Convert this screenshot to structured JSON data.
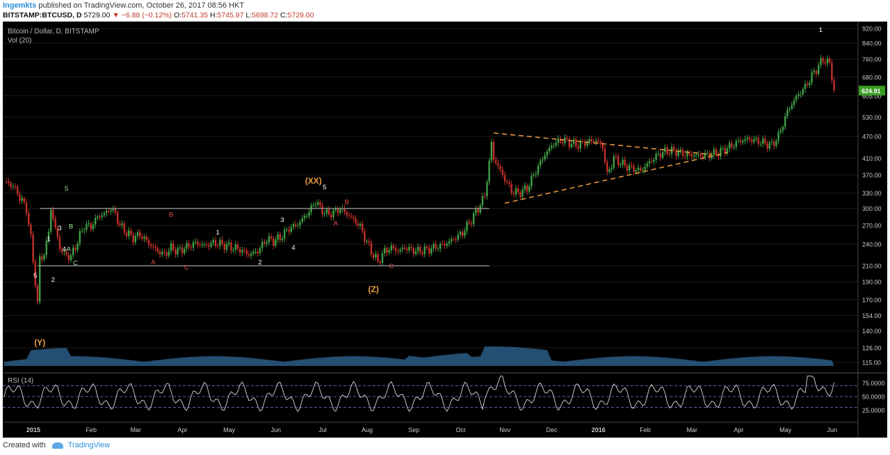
{
  "header": {
    "publisher": "Ingemkts",
    "published_text": "published on TradingView.com, October 26, 2017 08:56 HKT",
    "symbol": "BITSTAMP:BTCUSD, D",
    "last": "5729.00",
    "change": "−6.88 (−0.12%)",
    "open_label": "O:",
    "open": "5741.35",
    "high_label": "H:",
    "high": "5745.97",
    "low_label": "L:",
    "low": "5698.72",
    "close_label": "C:",
    "close": "5729.00"
  },
  "footer": {
    "created_with": "Created with",
    "brand": "TradingView"
  },
  "colors": {
    "background": "#000000",
    "grid": "#1c1c1c",
    "up": "#3fa046",
    "down": "#c4302b",
    "channel": "#8a8a8a",
    "triangle": "#f0a040",
    "wave_orange": "#f0a040",
    "wave_red": "#e8504a",
    "wave_green": "#9be39b",
    "wave_white": "#ffffff",
    "volume": "#2a5c86",
    "rsi": "#d8d8d8",
    "rsi_band": "#5566aa",
    "price_tag": "#3a9d23"
  },
  "chart_data": {
    "type": "candlestick",
    "title": "Bitcoin / Dollar, D, BITSTAMP",
    "volume_label": "Vol (20)",
    "rsi_label": "RSI (14)",
    "last_price_tag": "624.91",
    "price_scale": "log",
    "y_ticks": [
      "920.00",
      "840.00",
      "760.00",
      "680.00",
      "605.00",
      "530.00",
      "470.00",
      "410.00",
      "370.00",
      "330.00",
      "300.00",
      "270.00",
      "240.00",
      "210.00",
      "190.00",
      "170.00",
      "154.00",
      "140.00",
      "126.00",
      "115.00"
    ],
    "rsi_ticks": [
      "75.0000",
      "50.0000",
      "25.0000"
    ],
    "x_labels": [
      "2015",
      "Feb",
      "Mar",
      "Apr",
      "May",
      "Jun",
      "Jul",
      "Aug",
      "Sep",
      "Oct",
      "Nov",
      "Dec",
      "2016",
      "Feb",
      "Mar",
      "Apr",
      "May",
      "Jun"
    ],
    "price_path": [
      [
        0,
        355
      ],
      [
        4,
        345
      ],
      [
        7,
        322
      ],
      [
        10,
        300
      ],
      [
        12,
        248
      ],
      [
        14,
        190
      ],
      [
        15,
        165
      ],
      [
        16,
        220
      ],
      [
        18,
        225
      ],
      [
        20,
        260
      ],
      [
        21,
        300
      ],
      [
        23,
        265
      ],
      [
        25,
        235
      ],
      [
        27,
        225
      ],
      [
        30,
        222
      ],
      [
        33,
        245
      ],
      [
        36,
        270
      ],
      [
        39,
        268
      ],
      [
        42,
        285
      ],
      [
        45,
        290
      ],
      [
        48,
        300
      ],
      [
        50,
        290
      ],
      [
        52,
        270
      ],
      [
        55,
        258
      ],
      [
        58,
        250
      ],
      [
        61,
        255
      ],
      [
        64,
        245
      ],
      [
        66,
        238
      ],
      [
        69,
        230
      ],
      [
        72,
        225
      ],
      [
        75,
        235
      ],
      [
        78,
        230
      ],
      [
        82,
        236
      ],
      [
        86,
        242
      ],
      [
        90,
        238
      ],
      [
        94,
        242
      ],
      [
        98,
        240
      ],
      [
        102,
        236
      ],
      [
        106,
        232
      ],
      [
        110,
        225
      ],
      [
        114,
        230
      ],
      [
        118,
        248
      ],
      [
        121,
        245
      ],
      [
        124,
        250
      ],
      [
        128,
        265
      ],
      [
        132,
        272
      ],
      [
        135,
        285
      ],
      [
        138,
        300
      ],
      [
        140,
        315
      ],
      [
        142,
        300
      ],
      [
        145,
        290
      ],
      [
        148,
        292
      ],
      [
        151,
        300
      ],
      [
        154,
        290
      ],
      [
        157,
        280
      ],
      [
        160,
        268
      ],
      [
        162,
        250
      ],
      [
        165,
        230
      ],
      [
        168,
        215
      ],
      [
        171,
        230
      ],
      [
        174,
        235
      ],
      [
        177,
        230
      ],
      [
        180,
        235
      ],
      [
        183,
        232
      ],
      [
        186,
        230
      ],
      [
        190,
        232
      ],
      [
        194,
        236
      ],
      [
        198,
        240
      ],
      [
        202,
        248
      ],
      [
        206,
        258
      ],
      [
        210,
        280
      ],
      [
        213,
        300
      ],
      [
        216,
        325
      ],
      [
        218,
        400
      ],
      [
        219,
        450
      ],
      [
        220,
        410
      ],
      [
        222,
        390
      ],
      [
        225,
        360
      ],
      [
        228,
        335
      ],
      [
        231,
        330
      ],
      [
        235,
        340
      ],
      [
        239,
        380
      ],
      [
        243,
        420
      ],
      [
        247,
        450
      ],
      [
        251,
        460
      ],
      [
        255,
        450
      ],
      [
        258,
        445
      ],
      [
        262,
        455
      ],
      [
        266,
        458
      ],
      [
        269,
        440
      ],
      [
        271,
        370
      ],
      [
        274,
        410
      ],
      [
        278,
        395
      ],
      [
        282,
        385
      ],
      [
        286,
        380
      ],
      [
        290,
        400
      ],
      [
        294,
        420
      ],
      [
        298,
        430
      ],
      [
        302,
        428
      ],
      [
        306,
        420
      ],
      [
        310,
        418
      ],
      [
        314,
        418
      ],
      [
        318,
        420
      ],
      [
        322,
        428
      ],
      [
        326,
        440
      ],
      [
        330,
        455
      ],
      [
        334,
        462
      ],
      [
        338,
        458
      ],
      [
        342,
        450
      ],
      [
        345,
        445
      ],
      [
        348,
        470
      ],
      [
        352,
        550
      ],
      [
        356,
        600
      ],
      [
        360,
        640
      ],
      [
        364,
        700
      ],
      [
        368,
        760
      ],
      [
        371,
        740
      ],
      [
        373,
        625
      ]
    ],
    "trendlines": {
      "channel_top": 300,
      "channel_bottom": 210,
      "triangle_upper": [
        [
          220,
          480
        ],
        [
          318,
          420
        ]
      ],
      "triangle_lower": [
        [
          225,
          310
        ],
        [
          325,
          425
        ]
      ]
    },
    "wave_labels": [
      {
        "text": "(Y)",
        "d": 16,
        "p": 128,
        "color": "wave_orange",
        "size": "big"
      },
      {
        "text": "(XX)",
        "d": 139,
        "p": 350,
        "color": "wave_orange",
        "size": "big"
      },
      {
        "text": "(Z)",
        "d": 166,
        "p": 178,
        "color": "wave_orange",
        "size": "big"
      },
      {
        "text": "5",
        "d": 14,
        "p": 195,
        "color": "wave_white"
      },
      {
        "text": "1",
        "d": 20,
        "p": 245,
        "color": "wave_white"
      },
      {
        "text": "2",
        "d": 22,
        "p": 190,
        "color": "wave_white"
      },
      {
        "text": "3",
        "d": 25,
        "p": 262,
        "color": "wave_white"
      },
      {
        "text": "4",
        "d": 27,
        "p": 230,
        "color": "wave_white"
      },
      {
        "text": "5",
        "d": 28,
        "p": 335,
        "color": "wave_green"
      },
      {
        "text": "B",
        "d": 30,
        "p": 265,
        "color": "wave_green"
      },
      {
        "text": "A",
        "d": 29,
        "p": 230,
        "color": "wave_green"
      },
      {
        "text": "C",
        "d": 32,
        "p": 211,
        "color": "wave_green"
      },
      {
        "text": "B",
        "d": 75,
        "p": 285,
        "color": "wave_red"
      },
      {
        "text": "A",
        "d": 67,
        "p": 212,
        "color": "wave_red"
      },
      {
        "text": "C",
        "d": 82,
        "p": 205,
        "color": "wave_red"
      },
      {
        "text": "1",
        "d": 96,
        "p": 255,
        "color": "wave_white"
      },
      {
        "text": "2",
        "d": 115,
        "p": 212,
        "color": "wave_white"
      },
      {
        "text": "3",
        "d": 125,
        "p": 276,
        "color": "wave_white"
      },
      {
        "text": "4",
        "d": 130,
        "p": 232,
        "color": "wave_white"
      },
      {
        "text": "5",
        "d": 144,
        "p": 338,
        "color": "wave_white"
      },
      {
        "text": "B",
        "d": 154,
        "p": 308,
        "color": "wave_red"
      },
      {
        "text": "A",
        "d": 149,
        "p": 270,
        "color": "wave_red"
      },
      {
        "text": "C",
        "d": 174,
        "p": 207,
        "color": "wave_red"
      },
      {
        "text": "1",
        "d": 367,
        "p": 900,
        "color": "wave_white"
      }
    ]
  }
}
